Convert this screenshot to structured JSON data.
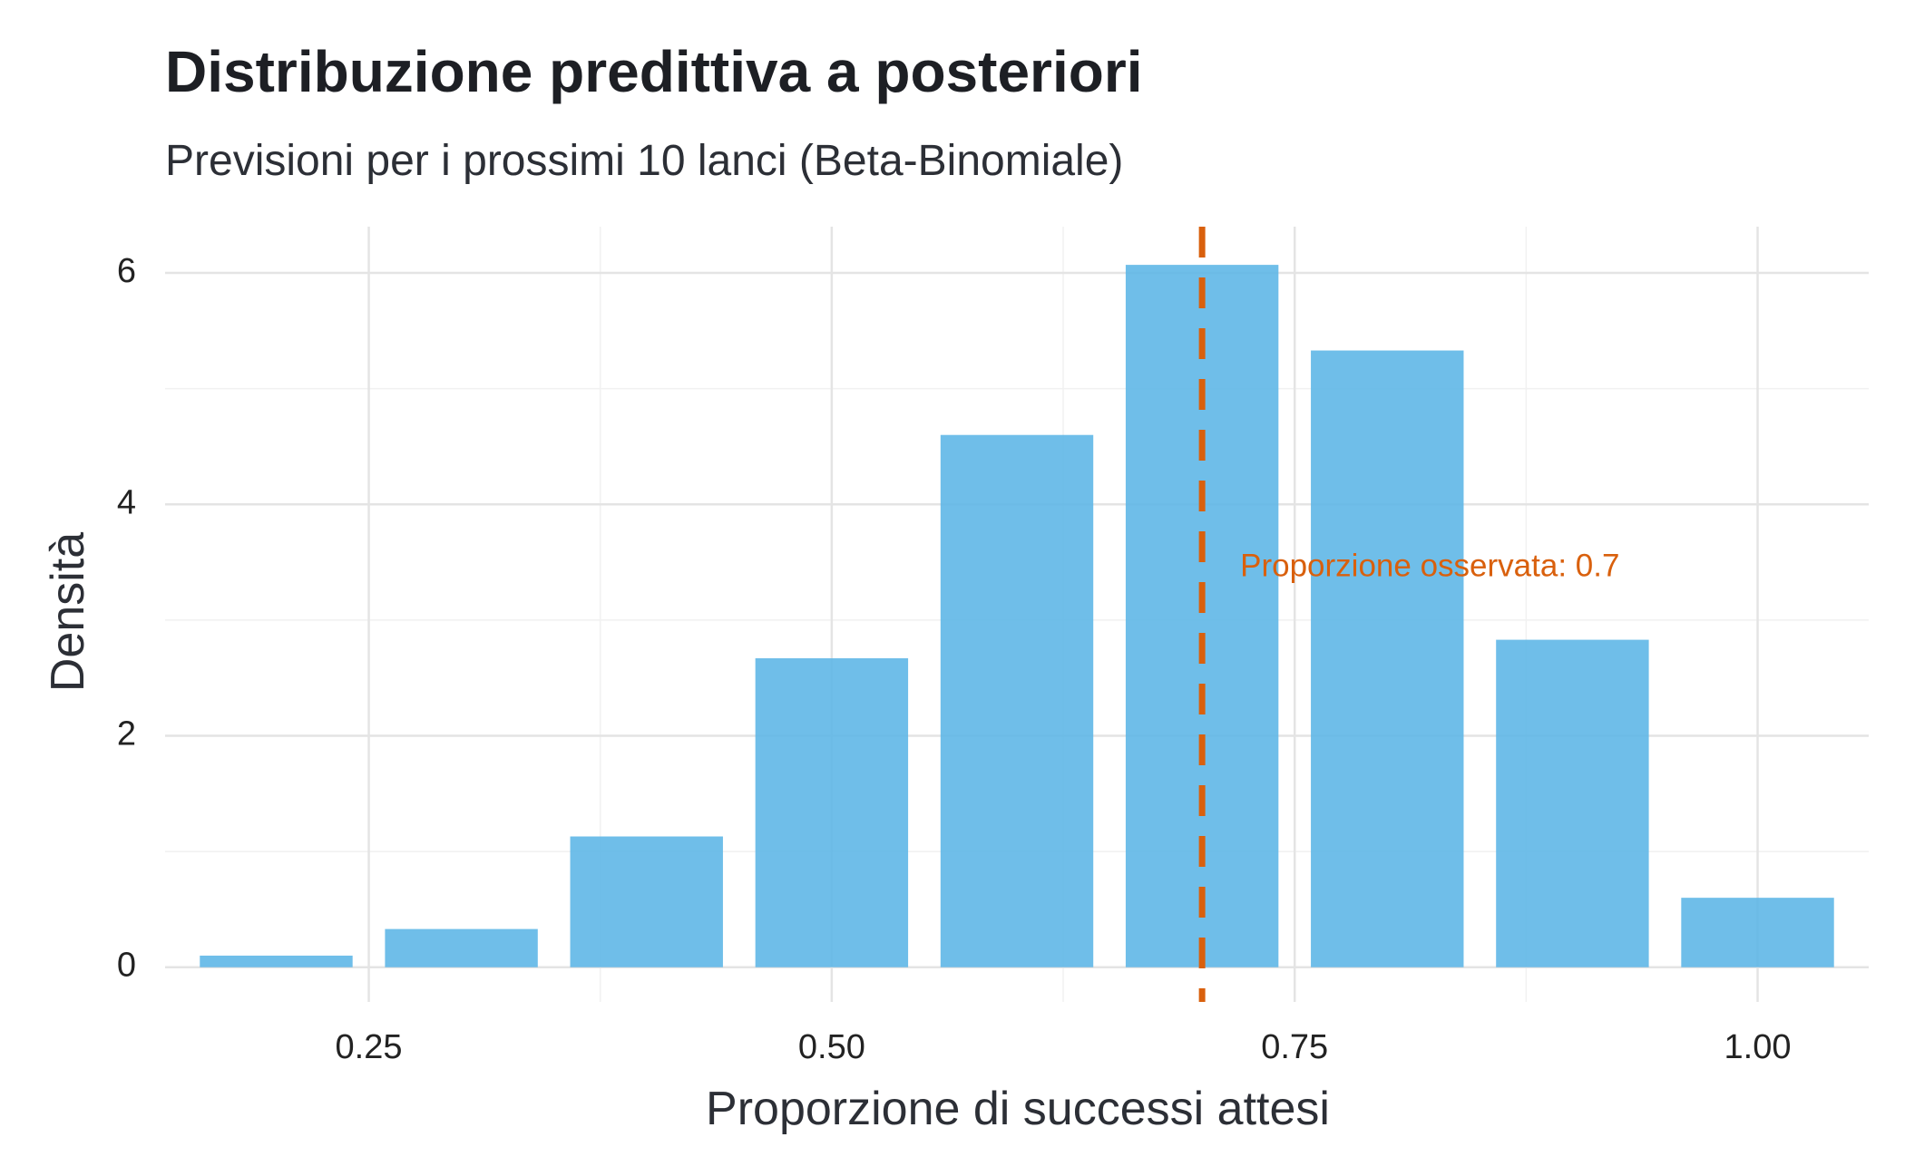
{
  "chart_data": {
    "type": "bar",
    "title": "Distribuzione predittiva a posteriori",
    "subtitle": "Previsioni per i prossimi 10 lanci (Beta-Binomiale)",
    "xlabel": "Proporzione di successi attesi",
    "ylabel": "Densità",
    "x": [
      0.2,
      0.3,
      0.4,
      0.5,
      0.6,
      0.7,
      0.8,
      0.9,
      1.0
    ],
    "values": [
      0.1,
      0.33,
      1.13,
      2.67,
      4.6,
      6.07,
      5.33,
      2.83,
      0.6
    ],
    "bin_width": 0.0825,
    "xlim": [
      0.14,
      1.06
    ],
    "ylim": [
      -0.3,
      6.4
    ],
    "x_ticks": [
      0.25,
      0.5,
      0.75,
      1.0
    ],
    "x_tick_labels": [
      "0.25",
      "0.50",
      "0.75",
      "1.00"
    ],
    "y_ticks": [
      0,
      2,
      4,
      6
    ],
    "y_tick_labels": [
      "0",
      "2",
      "4",
      "6"
    ],
    "grid": true,
    "bar_color": "#5bb5e6",
    "reference_line": {
      "x": 0.7,
      "style": "dashed",
      "color": "#d9600d",
      "label": "Proporzione osservata: 0.7",
      "label_y": 3.45
    }
  }
}
